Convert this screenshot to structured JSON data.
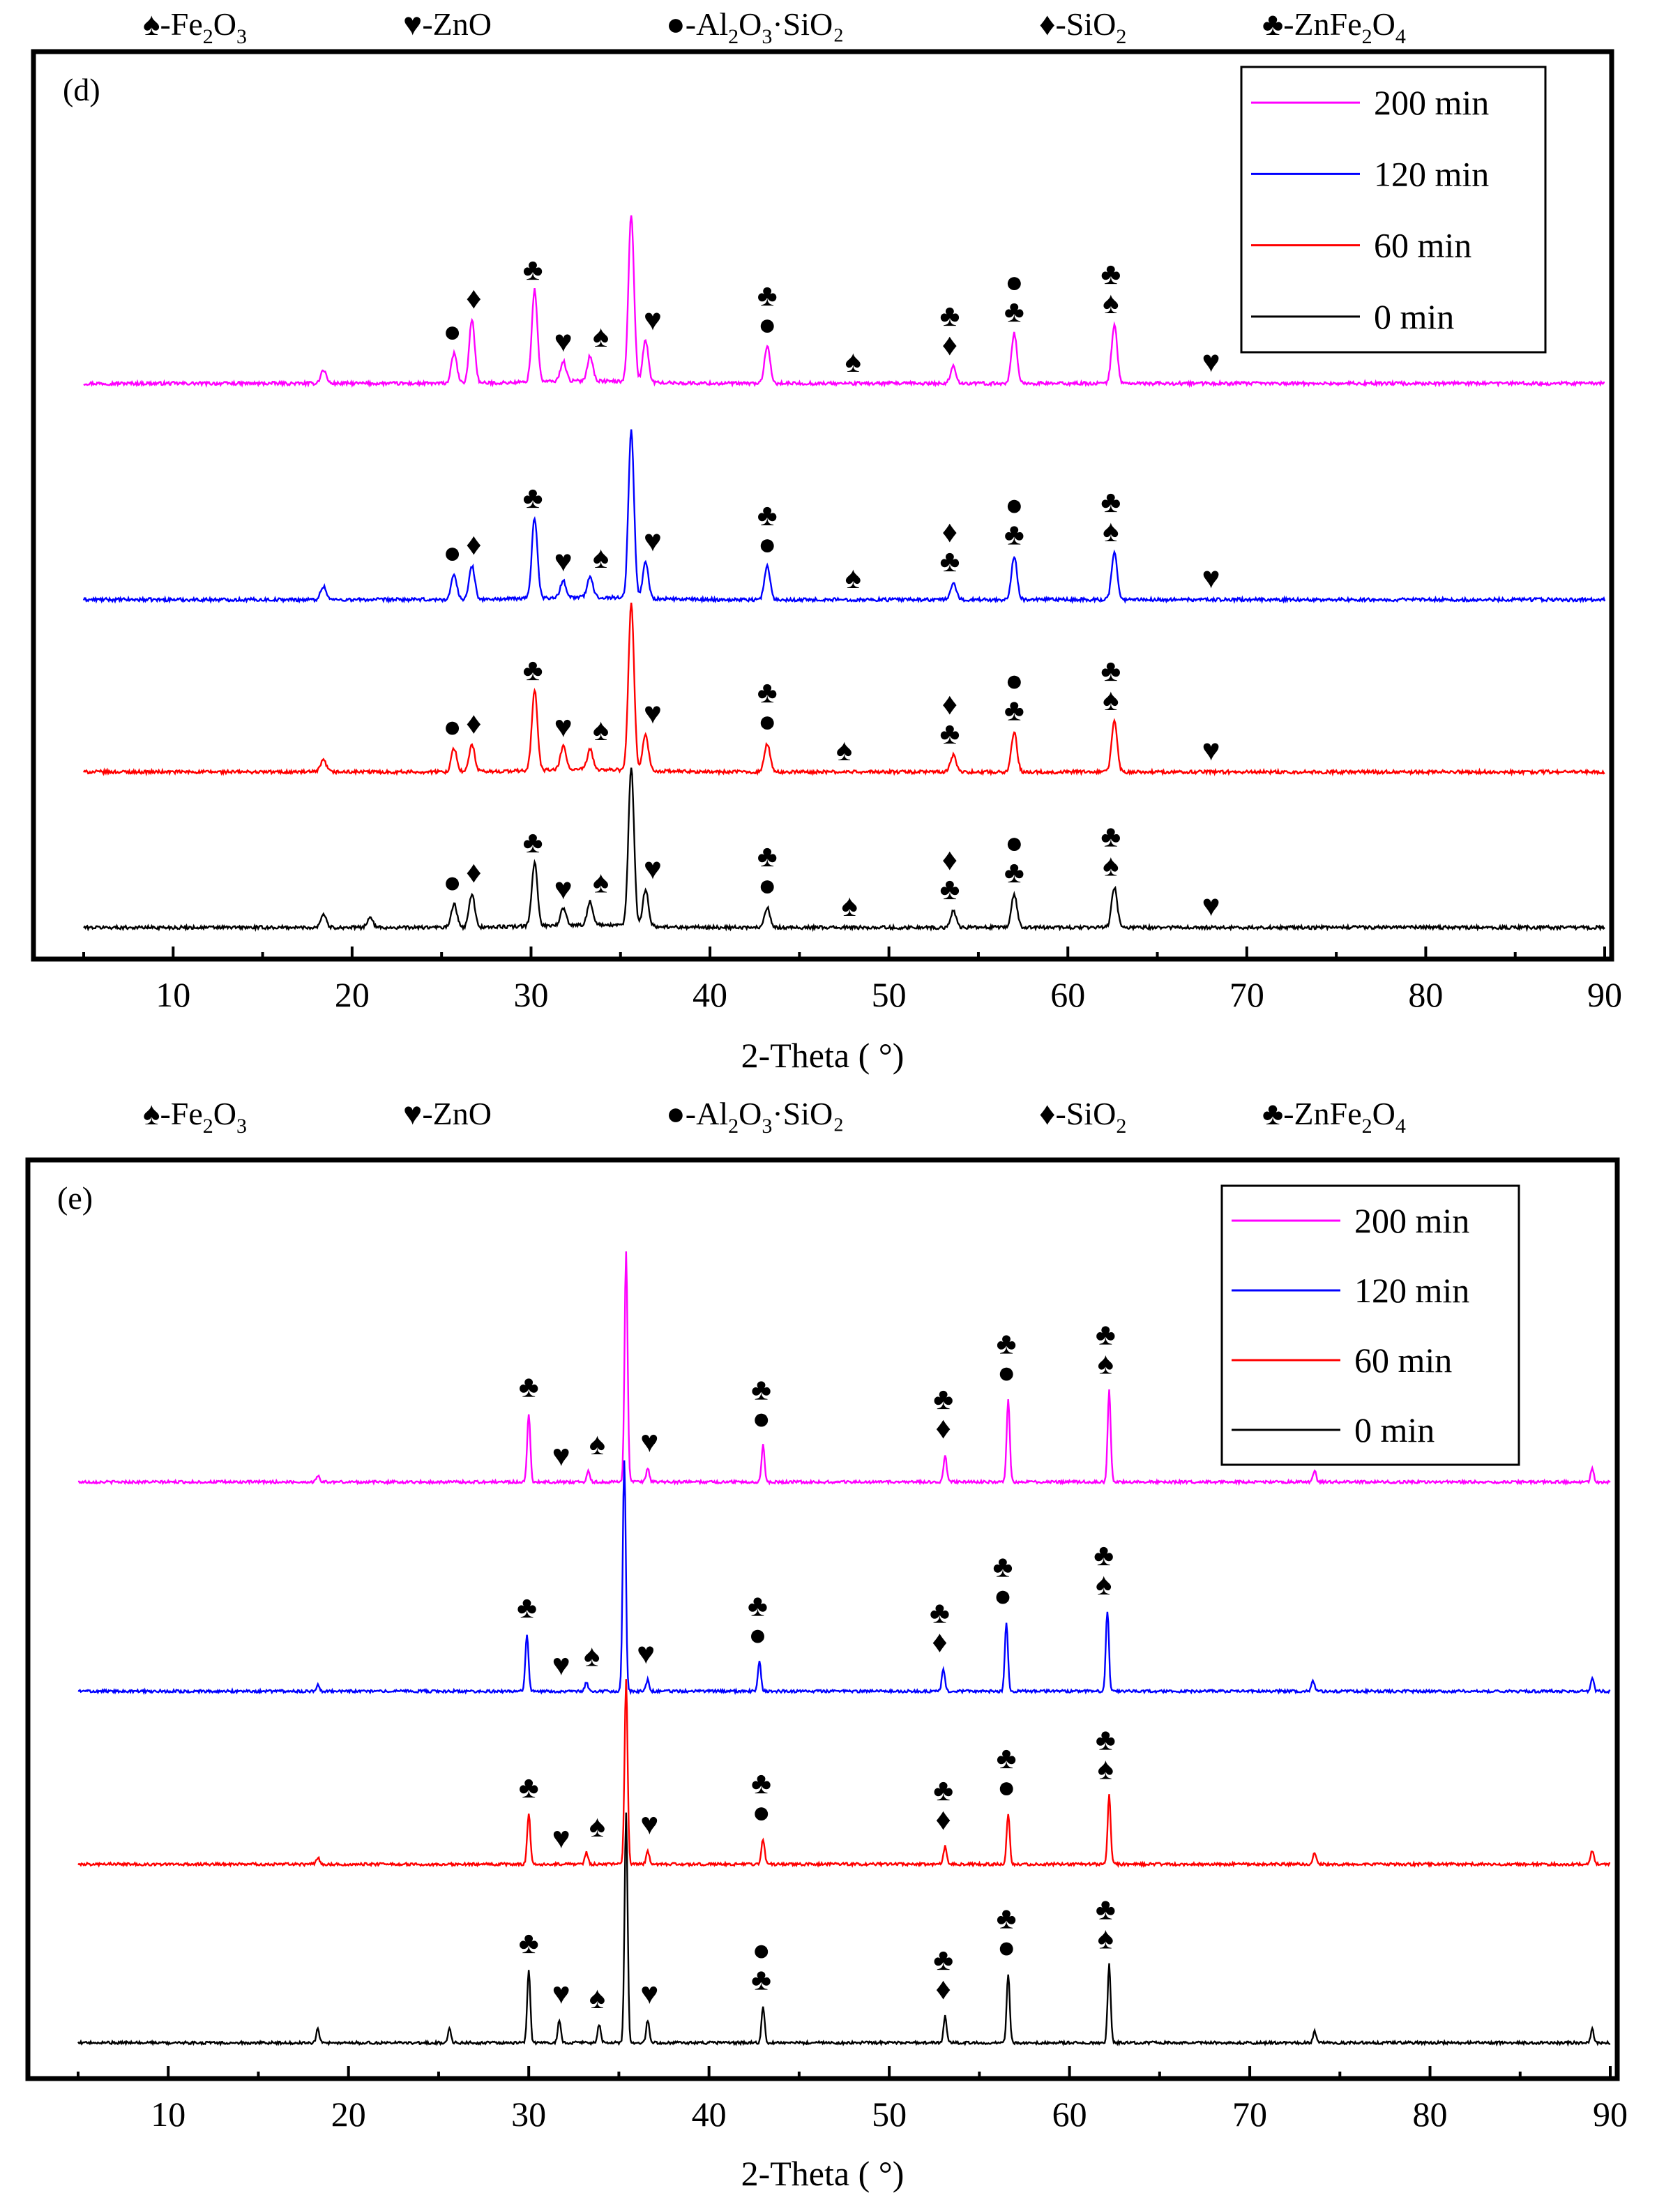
{
  "chart_data": [
    {
      "type": "line",
      "panel_label": "(d)",
      "xlabel": "2-Theta ( °)",
      "xlim": [
        5,
        90
      ],
      "x_ticks": [
        10,
        20,
        30,
        40,
        50,
        60,
        70,
        80,
        90
      ],
      "phase_legend": [
        {
          "symbol": "♠",
          "base": "-Fe",
          "sub1": "2",
          "mid": "O",
          "sub2": "3",
          "tail": ""
        },
        {
          "symbol": "♥",
          "base": "-ZnO",
          "sub1": "",
          "mid": "",
          "sub2": "",
          "tail": ""
        },
        {
          "symbol": "●",
          "base": "-Al",
          "sub1": "2",
          "mid": "O",
          "sub2": "3",
          "tail": "·SiO₂"
        },
        {
          "symbol": "♦",
          "base": "-SiO",
          "sub1": "2",
          "mid": "",
          "sub2": "",
          "tail": ""
        },
        {
          "symbol": "♣",
          "base": "-ZnFe",
          "sub1": "2",
          "mid": "O",
          "sub2": "4",
          "tail": ""
        }
      ],
      "series": [
        {
          "name": "200 min",
          "color": "#ff00ff",
          "peaks": [
            [
              18.4,
              0.08
            ],
            [
              25.7,
              0.18
            ],
            [
              26.7,
              0.38
            ],
            [
              30.2,
              0.55
            ],
            [
              31.8,
              0.12
            ],
            [
              33.3,
              0.15
            ],
            [
              35.6,
              1.0
            ],
            [
              36.4,
              0.25
            ],
            [
              43.2,
              0.22
            ],
            [
              53.6,
              0.1
            ],
            [
              57.0,
              0.3
            ],
            [
              62.6,
              0.35
            ]
          ],
          "markers": [
            [
              25.6,
              "●"
            ],
            [
              26.8,
              "♦"
            ],
            [
              30.1,
              "♣"
            ],
            [
              31.8,
              "♥"
            ],
            [
              33.9,
              "♠"
            ],
            [
              36.8,
              "♥"
            ],
            [
              43.2,
              "♣●"
            ],
            [
              48.0,
              "♠"
            ],
            [
              53.4,
              "♣♦"
            ],
            [
              57.0,
              "●♣"
            ],
            [
              62.4,
              "♣♠"
            ],
            [
              68.0,
              "♥"
            ]
          ]
        },
        {
          "name": "120 min",
          "color": "#0000ff",
          "peaks": [
            [
              18.4,
              0.08
            ],
            [
              25.7,
              0.15
            ],
            [
              26.7,
              0.2
            ],
            [
              30.2,
              0.48
            ],
            [
              31.8,
              0.1
            ],
            [
              33.3,
              0.12
            ],
            [
              35.6,
              1.0
            ],
            [
              36.4,
              0.22
            ],
            [
              43.2,
              0.2
            ],
            [
              53.6,
              0.1
            ],
            [
              57.0,
              0.26
            ],
            [
              62.6,
              0.28
            ]
          ],
          "markers": [
            [
              25.6,
              "●"
            ],
            [
              26.8,
              "♦"
            ],
            [
              30.1,
              "♣"
            ],
            [
              31.8,
              "♥"
            ],
            [
              33.9,
              "♠"
            ],
            [
              36.8,
              "♥"
            ],
            [
              43.2,
              "♣●"
            ],
            [
              48.0,
              "♠"
            ],
            [
              53.4,
              "♦♣"
            ],
            [
              57.0,
              "●♣"
            ],
            [
              62.4,
              "♣♠"
            ],
            [
              68.0,
              "♥"
            ]
          ]
        },
        {
          "name": "60 min",
          "color": "#ff0000",
          "peaks": [
            [
              18.4,
              0.07
            ],
            [
              25.7,
              0.14
            ],
            [
              26.7,
              0.16
            ],
            [
              30.2,
              0.48
            ],
            [
              31.8,
              0.14
            ],
            [
              33.3,
              0.12
            ],
            [
              35.6,
              1.0
            ],
            [
              36.4,
              0.22
            ],
            [
              43.2,
              0.17
            ],
            [
              53.6,
              0.1
            ],
            [
              57.0,
              0.24
            ],
            [
              62.6,
              0.3
            ]
          ],
          "markers": [
            [
              25.6,
              "●"
            ],
            [
              26.8,
              "♦"
            ],
            [
              30.1,
              "♣"
            ],
            [
              31.8,
              "♥"
            ],
            [
              33.9,
              "♠"
            ],
            [
              36.8,
              "♥"
            ],
            [
              43.2,
              "♣●"
            ],
            [
              47.5,
              "♠"
            ],
            [
              53.4,
              "♦♣"
            ],
            [
              57.0,
              "●♣"
            ],
            [
              62.4,
              "♣♠"
            ],
            [
              68.0,
              "♥"
            ]
          ]
        },
        {
          "name": "0 min",
          "color": "#000000",
          "peaks": [
            [
              18.4,
              0.08
            ],
            [
              21.0,
              0.06
            ],
            [
              25.7,
              0.14
            ],
            [
              26.7,
              0.2
            ],
            [
              30.2,
              0.38
            ],
            [
              31.8,
              0.1
            ],
            [
              33.3,
              0.14
            ],
            [
              35.6,
              0.95
            ],
            [
              36.4,
              0.22
            ],
            [
              43.2,
              0.12
            ],
            [
              53.6,
              0.1
            ],
            [
              57.0,
              0.2
            ],
            [
              62.6,
              0.24
            ]
          ],
          "markers": [
            [
              25.6,
              "●"
            ],
            [
              26.8,
              "♦"
            ],
            [
              30.1,
              "♣"
            ],
            [
              31.8,
              "♥"
            ],
            [
              33.9,
              "♠"
            ],
            [
              36.8,
              "♥"
            ],
            [
              43.2,
              "♣●"
            ],
            [
              47.8,
              "♠"
            ],
            [
              53.4,
              "♦♣"
            ],
            [
              57.0,
              "●♣"
            ],
            [
              62.4,
              "♣♠"
            ],
            [
              68.0,
              "♥"
            ]
          ]
        }
      ]
    },
    {
      "type": "line",
      "panel_label": "(e)",
      "xlabel": "2-Theta ( °)",
      "xlim": [
        5,
        90
      ],
      "x_ticks": [
        10,
        20,
        30,
        40,
        50,
        60,
        70,
        80,
        90
      ],
      "phase_legend": [
        {
          "symbol": "♠",
          "base": "-Fe",
          "sub1": "2",
          "mid": "O",
          "sub2": "3",
          "tail": ""
        },
        {
          "symbol": "♥",
          "base": "-ZnO",
          "sub1": "",
          "mid": "",
          "sub2": "",
          "tail": ""
        },
        {
          "symbol": "●",
          "base": "-Al",
          "sub1": "2",
          "mid": "O",
          "sub2": "3",
          "tail": "·SiO₂"
        },
        {
          "symbol": "♦",
          "base": "-SiO",
          "sub1": "2",
          "mid": "",
          "sub2": "",
          "tail": ""
        },
        {
          "symbol": "♣",
          "base": "-ZnFe",
          "sub1": "2",
          "mid": "O",
          "sub2": "4",
          "tail": ""
        }
      ],
      "series": [
        {
          "name": "200 min",
          "color": "#ff00ff",
          "peaks": [
            [
              18.3,
              0.03
            ],
            [
              30.0,
              0.3
            ],
            [
              33.3,
              0.05
            ],
            [
              35.4,
              1.0
            ],
            [
              36.6,
              0.06
            ],
            [
              43.0,
              0.16
            ],
            [
              53.1,
              0.12
            ],
            [
              56.6,
              0.36
            ],
            [
              62.2,
              0.4
            ],
            [
              73.6,
              0.05
            ],
            [
              89.0,
              0.06
            ]
          ],
          "markers": [
            [
              30.0,
              "♣"
            ],
            [
              31.8,
              "♥"
            ],
            [
              33.8,
              "♠"
            ],
            [
              36.7,
              "♥"
            ],
            [
              42.9,
              "♣●"
            ],
            [
              53.0,
              "♣♦"
            ],
            [
              56.5,
              "♣●"
            ],
            [
              62.0,
              "♣♠"
            ]
          ]
        },
        {
          "name": "120 min",
          "color": "#0000ff",
          "peaks": [
            [
              18.3,
              0.03
            ],
            [
              29.9,
              0.25
            ],
            [
              33.2,
              0.04
            ],
            [
              35.3,
              1.0
            ],
            [
              36.6,
              0.05
            ],
            [
              42.8,
              0.13
            ],
            [
              53.0,
              0.1
            ],
            [
              56.5,
              0.3
            ],
            [
              62.1,
              0.35
            ],
            [
              73.5,
              0.05
            ],
            [
              89.0,
              0.06
            ]
          ],
          "markers": [
            [
              29.9,
              "♣"
            ],
            [
              31.8,
              "♥"
            ],
            [
              33.5,
              "♠"
            ],
            [
              36.5,
              "♥"
            ],
            [
              42.7,
              "♣●"
            ],
            [
              52.8,
              "♣♦"
            ],
            [
              56.3,
              "♣●"
            ],
            [
              61.9,
              "♣♠"
            ]
          ]
        },
        {
          "name": "60 min",
          "color": "#ff0000",
          "peaks": [
            [
              18.3,
              0.03
            ],
            [
              30.0,
              0.22
            ],
            [
              33.2,
              0.05
            ],
            [
              35.4,
              0.8
            ],
            [
              36.6,
              0.06
            ],
            [
              43.0,
              0.11
            ],
            [
              53.1,
              0.08
            ],
            [
              56.6,
              0.22
            ],
            [
              62.2,
              0.3
            ],
            [
              73.6,
              0.05
            ],
            [
              89.0,
              0.06
            ]
          ],
          "markers": [
            [
              30.0,
              "♣"
            ],
            [
              31.8,
              "♥"
            ],
            [
              33.8,
              "♠"
            ],
            [
              36.7,
              "♥"
            ],
            [
              42.9,
              "♣●"
            ],
            [
              53.0,
              "♣♦"
            ],
            [
              56.5,
              "♣●"
            ],
            [
              62.0,
              "♣♠"
            ]
          ]
        },
        {
          "name": "0 min",
          "color": "#000000",
          "peaks": [
            [
              18.3,
              0.06
            ],
            [
              25.6,
              0.06
            ],
            [
              30.0,
              0.32
            ],
            [
              31.7,
              0.1
            ],
            [
              33.9,
              0.08
            ],
            [
              35.4,
              1.0
            ],
            [
              36.6,
              0.1
            ],
            [
              43.0,
              0.16
            ],
            [
              53.1,
              0.12
            ],
            [
              56.6,
              0.3
            ],
            [
              62.2,
              0.34
            ],
            [
              73.6,
              0.05
            ],
            [
              89.0,
              0.06
            ]
          ],
          "markers": [
            [
              30.0,
              "♣"
            ],
            [
              31.8,
              "♥"
            ],
            [
              33.8,
              "♠"
            ],
            [
              36.7,
              "♥"
            ],
            [
              42.9,
              "●♣"
            ],
            [
              53.0,
              "♣♦"
            ],
            [
              56.5,
              "♣●"
            ],
            [
              62.0,
              "♣♠"
            ]
          ]
        }
      ]
    }
  ]
}
